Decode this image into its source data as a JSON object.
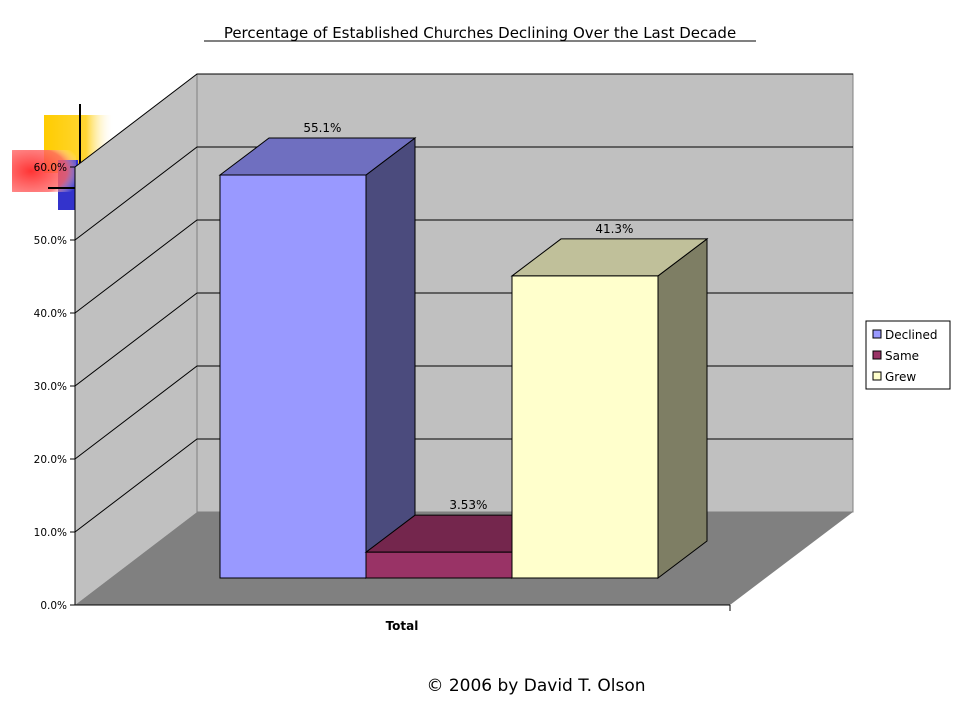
{
  "chart_data": {
    "type": "bar",
    "title": "Percentage of Established Churches Declining Over the Last Decade",
    "categories": [
      "Total"
    ],
    "series": [
      {
        "name": "Declined",
        "values": [
          55.1
        ],
        "label": "55.1%",
        "color": "#9999ff",
        "top": "#6f6fc0",
        "side": "#4b4b7d"
      },
      {
        "name": "Same",
        "values": [
          3.53
        ],
        "label": "3.53%",
        "color": "#993366",
        "top": "#74264d",
        "side": "#5e1f3f"
      },
      {
        "name": "Grew",
        "values": [
          41.3
        ],
        "label": "41.3%",
        "color": "#ffffcc",
        "top": "#c0c09a",
        "side": "#7e7e64"
      }
    ],
    "ylim": [
      0,
      60
    ],
    "yticks": [
      "0.0%",
      "10.0%",
      "20.0%",
      "30.0%",
      "40.0%",
      "50.0%",
      "60.0%"
    ],
    "grid": true,
    "legend": "right",
    "colors": {
      "wall": "#c0c0c0",
      "floor": "#808080"
    }
  },
  "footer": {
    "copyright": "© 2006 by David T. Olson"
  },
  "decoration": {
    "colors": {
      "yellow": "#ffcc00",
      "red": "#ff3333",
      "blue": "#3333cc"
    }
  }
}
